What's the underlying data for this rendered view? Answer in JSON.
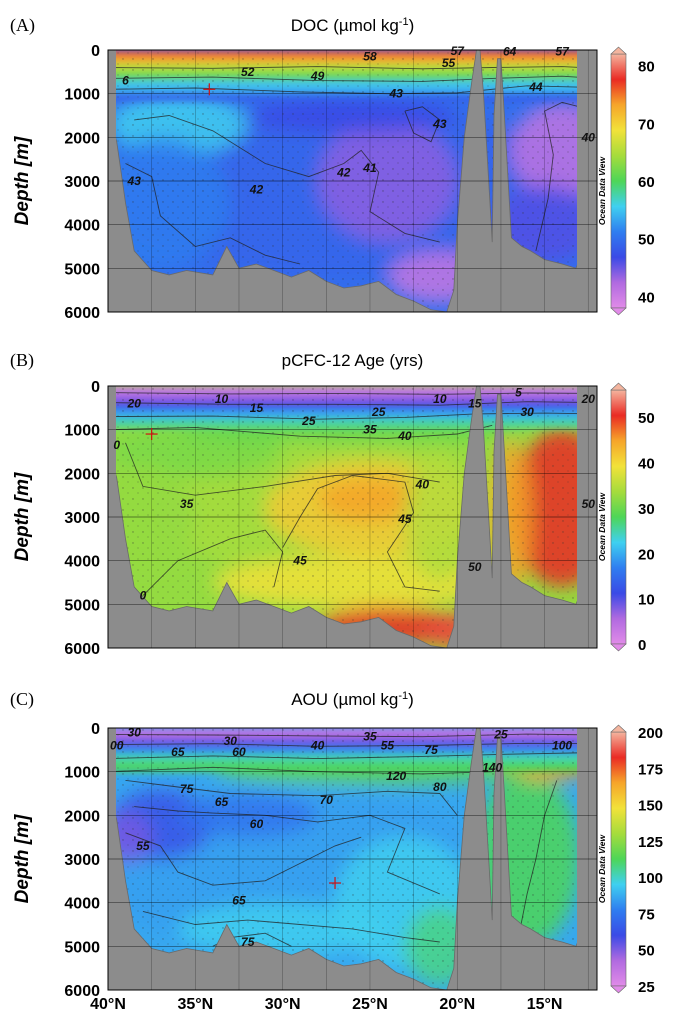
{
  "figure": {
    "xaxis_ticks": [
      "40°N",
      "35°N",
      "30°N",
      "25°N",
      "20°N",
      "15°N"
    ],
    "watermark": "Ocean Data View"
  },
  "chart_data": [
    {
      "type": "heatmap",
      "panel_label": "(A)",
      "title": "DOC (µmol kg",
      "title_sup": "-1",
      "title_close": ")",
      "ylabel": "Depth [m]",
      "y_ticks": [
        "0",
        "1000",
        "2000",
        "3000",
        "4000",
        "5000",
        "6000"
      ],
      "ylim": [
        6000,
        0
      ],
      "xlim": [
        40,
        12
      ],
      "colorbar": {
        "ticks": [
          "80",
          "70",
          "60",
          "50",
          "40"
        ],
        "range": [
          38,
          82
        ]
      },
      "contour_labels": [
        {
          "text": "58",
          "lat": 25.0,
          "depth": 150
        },
        {
          "text": "55",
          "lat": 20.5,
          "depth": 300
        },
        {
          "text": "57",
          "lat": 20.0,
          "depth": 20
        },
        {
          "text": "64",
          "lat": 17.0,
          "depth": 30
        },
        {
          "text": "57",
          "lat": 14.0,
          "depth": 30
        },
        {
          "text": "52",
          "lat": 32.0,
          "depth": 500
        },
        {
          "text": "49",
          "lat": 28.0,
          "depth": 600
        },
        {
          "text": "6",
          "lat": 39.0,
          "depth": 700
        },
        {
          "text": "43",
          "lat": 23.5,
          "depth": 1000
        },
        {
          "text": "44",
          "lat": 15.5,
          "depth": 850
        },
        {
          "text": "43",
          "lat": 21.0,
          "depth": 1700
        },
        {
          "text": "40",
          "lat": 12.5,
          "depth": 2000
        },
        {
          "text": "43",
          "lat": 38.5,
          "depth": 3000
        },
        {
          "text": "42",
          "lat": 31.5,
          "depth": 3200
        },
        {
          "text": "42",
          "lat": 26.5,
          "depth": 2800
        },
        {
          "text": "41",
          "lat": 25.0,
          "depth": 2700
        }
      ]
    },
    {
      "type": "heatmap",
      "panel_label": "(B)",
      "title": "pCFC-12 Age (yrs)",
      "title_sup": "",
      "title_close": "",
      "ylabel": "Depth [m]",
      "y_ticks": [
        "0",
        "1000",
        "2000",
        "3000",
        "4000",
        "5000",
        "6000"
      ],
      "ylim": [
        6000,
        0
      ],
      "xlim": [
        40,
        12
      ],
      "colorbar": {
        "ticks": [
          "50",
          "40",
          "30",
          "20",
          "10",
          "0"
        ],
        "range": [
          0,
          56
        ]
      },
      "contour_labels": [
        {
          "text": "20",
          "lat": 38.5,
          "depth": 400
        },
        {
          "text": "10",
          "lat": 33.5,
          "depth": 300
        },
        {
          "text": "15",
          "lat": 31.5,
          "depth": 500
        },
        {
          "text": "25",
          "lat": 28.5,
          "depth": 800
        },
        {
          "text": "25",
          "lat": 24.5,
          "depth": 600
        },
        {
          "text": "35",
          "lat": 25.0,
          "depth": 1000
        },
        {
          "text": "10",
          "lat": 21.0,
          "depth": 300
        },
        {
          "text": "15",
          "lat": 19.0,
          "depth": 400
        },
        {
          "text": "5",
          "lat": 16.5,
          "depth": 150
        },
        {
          "text": "30",
          "lat": 16.0,
          "depth": 600
        },
        {
          "text": "20",
          "lat": 12.5,
          "depth": 300
        },
        {
          "text": "40",
          "lat": 23.0,
          "depth": 1150
        },
        {
          "text": "0",
          "lat": 39.5,
          "depth": 1350
        },
        {
          "text": "35",
          "lat": 35.5,
          "depth": 2700
        },
        {
          "text": "40",
          "lat": 22.0,
          "depth": 2250
        },
        {
          "text": "45",
          "lat": 23.0,
          "depth": 3050
        },
        {
          "text": "45",
          "lat": 29.0,
          "depth": 4000
        },
        {
          "text": "50",
          "lat": 19.0,
          "depth": 4150
        },
        {
          "text": "0",
          "lat": 38.0,
          "depth": 4800
        },
        {
          "text": "50",
          "lat": 12.5,
          "depth": 2700
        }
      ]
    },
    {
      "type": "heatmap",
      "panel_label": "(C)",
      "title": "AOU (µmol kg",
      "title_sup": "-1",
      "title_close": ")",
      "ylabel": "Depth [m]",
      "y_ticks": [
        "0",
        "1000",
        "2000",
        "3000",
        "4000",
        "5000",
        "6000"
      ],
      "ylim": [
        6000,
        0
      ],
      "xlim": [
        40,
        12
      ],
      "colorbar": {
        "ticks": [
          "200",
          "175",
          "150",
          "125",
          "100",
          "75",
          "50",
          "25"
        ],
        "range": [
          25,
          200
        ]
      },
      "contour_labels": [
        {
          "text": "30",
          "lat": 38.5,
          "depth": 100
        },
        {
          "text": "00",
          "lat": 39.5,
          "depth": 400
        },
        {
          "text": "65",
          "lat": 36.0,
          "depth": 550
        },
        {
          "text": "30",
          "lat": 33.0,
          "depth": 300
        },
        {
          "text": "60",
          "lat": 32.5,
          "depth": 550
        },
        {
          "text": "40",
          "lat": 28.0,
          "depth": 400
        },
        {
          "text": "35",
          "lat": 25.0,
          "depth": 200
        },
        {
          "text": "55",
          "lat": 24.0,
          "depth": 400
        },
        {
          "text": "75",
          "lat": 21.5,
          "depth": 500
        },
        {
          "text": "25",
          "lat": 17.5,
          "depth": 150
        },
        {
          "text": "100",
          "lat": 14.0,
          "depth": 400
        },
        {
          "text": "140",
          "lat": 18.0,
          "depth": 900
        },
        {
          "text": "120",
          "lat": 23.5,
          "depth": 1100
        },
        {
          "text": "75",
          "lat": 35.5,
          "depth": 1400
        },
        {
          "text": "80",
          "lat": 21.0,
          "depth": 1350
        },
        {
          "text": "65",
          "lat": 33.5,
          "depth": 1700
        },
        {
          "text": "70",
          "lat": 27.5,
          "depth": 1650
        },
        {
          "text": "60",
          "lat": 31.5,
          "depth": 2200
        },
        {
          "text": "55",
          "lat": 38.0,
          "depth": 2700
        },
        {
          "text": "65",
          "lat": 32.5,
          "depth": 3950
        },
        {
          "text": "75",
          "lat": 32.0,
          "depth": 4900
        }
      ]
    }
  ]
}
